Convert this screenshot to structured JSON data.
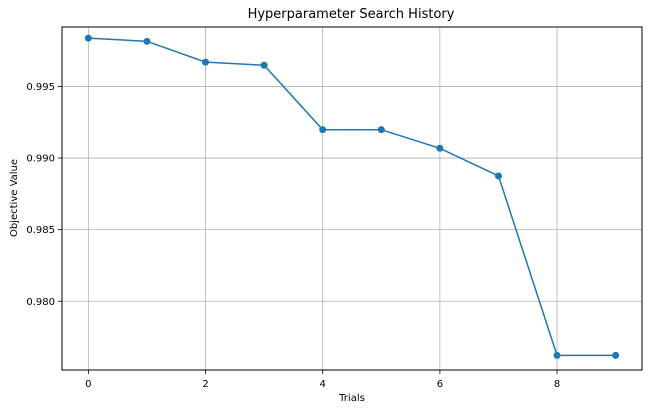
{
  "chart_data": {
    "type": "line",
    "title": "Hyperparameter Search History",
    "xlabel": "Trials",
    "ylabel": "Objective Value",
    "x": [
      0,
      1,
      2,
      3,
      4,
      5,
      6,
      7,
      8,
      9
    ],
    "y": [
      0.99837,
      0.99815,
      0.9967,
      0.99648,
      0.99198,
      0.99198,
      0.99068,
      0.98875,
      0.97622,
      0.97622
    ],
    "xlim": [
      -0.45,
      9.45
    ],
    "ylim": [
      0.9752,
      0.99915
    ],
    "xticks": [
      0,
      2,
      4,
      6,
      8
    ],
    "yticks": [
      0.98,
      0.985,
      0.99,
      0.995
    ],
    "ytick_labels": [
      "0.980",
      "0.985",
      "0.990",
      "0.995"
    ],
    "grid": true,
    "line_color": "#1f77b4",
    "marker_color": "#1f77b4"
  }
}
